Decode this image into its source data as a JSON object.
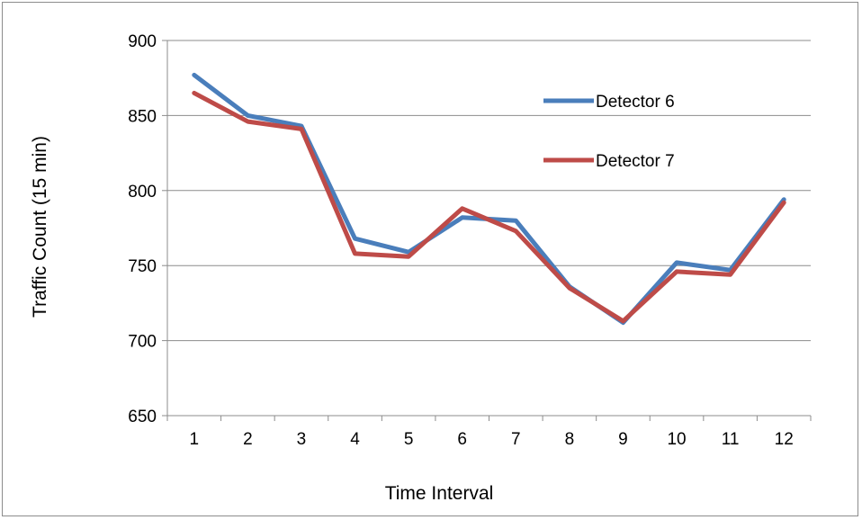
{
  "chart_data": {
    "type": "line",
    "title": "",
    "xlabel": "Time Interval",
    "ylabel": "Traffic Count (15 min)",
    "categories": [
      "1",
      "2",
      "3",
      "4",
      "5",
      "6",
      "7",
      "8",
      "9",
      "10",
      "11",
      "12"
    ],
    "ylim": [
      650,
      900
    ],
    "yticks": [
      650,
      700,
      750,
      800,
      850,
      900
    ],
    "grid": "horizontal",
    "legend_position": "top-right",
    "series": [
      {
        "name": "Detector 6",
        "color": "#4a7ebb",
        "values": [
          877,
          850,
          843,
          768,
          759,
          782,
          780,
          736,
          712,
          752,
          747,
          794
        ]
      },
      {
        "name": "Detector 7",
        "color": "#be4b48",
        "values": [
          865,
          846,
          841,
          758,
          756,
          788,
          773,
          735,
          713,
          746,
          744,
          792
        ]
      }
    ]
  }
}
